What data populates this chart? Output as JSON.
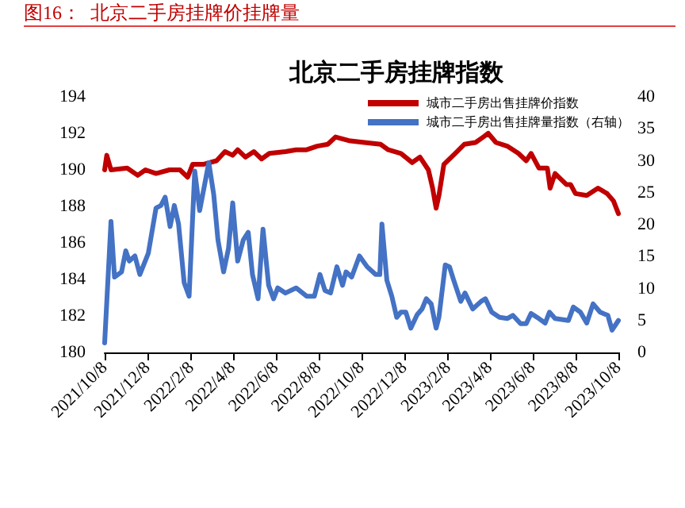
{
  "chart_data": {
    "type": "line",
    "title": "图16：  北京二手房挂牌价挂牌量",
    "subtitle": "北京二手房挂牌指数",
    "xlim": [
      "2021-10-08",
      "2023-10-08"
    ],
    "xticks": [
      {
        "value": "2021-10-08",
        "label": "2021/10/8"
      },
      {
        "value": "2021-12-08",
        "label": "2021/12/8"
      },
      {
        "value": "2022-02-08",
        "label": "2022/2/8"
      },
      {
        "value": "2022-04-08",
        "label": "2022/4/8"
      },
      {
        "value": "2022-06-08",
        "label": "2022/6/8"
      },
      {
        "value": "2022-08-08",
        "label": "2022/8/8"
      },
      {
        "value": "2022-10-08",
        "label": "2022/10/8"
      },
      {
        "value": "2022-12-08",
        "label": "2022/12/8"
      },
      {
        "value": "2023-02-08",
        "label": "2023/2/8"
      },
      {
        "value": "2023-04-08",
        "label": "2023/4/8"
      },
      {
        "value": "2023-06-08",
        "label": "2023/6/8"
      },
      {
        "value": "2023-08-08",
        "label": "2023/8/8"
      },
      {
        "value": "2023-10-08",
        "label": "2023/10/8"
      }
    ],
    "ylim": [
      180,
      194
    ],
    "yticks": [
      180,
      182,
      184,
      186,
      188,
      190,
      192,
      194
    ],
    "y2lim": [
      0,
      40
    ],
    "y2ticks": [
      0,
      5,
      10,
      15,
      20,
      25,
      30,
      35,
      40
    ],
    "legend": "top right",
    "grid": false,
    "series": [
      {
        "name": "城市二手房出售挂牌价指数",
        "color": "#c00000",
        "x": [
          "2021-10-08",
          "2021-10-11",
          "2021-10-17",
          "2021-11-09",
          "2021-11-24",
          "2021-12-05",
          "2021-12-20",
          "2022-01-08",
          "2022-01-23",
          "2022-02-03",
          "2022-02-10",
          "2022-02-25",
          "2022-03-16",
          "2022-03-28",
          "2022-04-08",
          "2022-04-15",
          "2022-04-26",
          "2022-05-08",
          "2022-05-19",
          "2022-05-30",
          "2022-06-22",
          "2022-07-07",
          "2022-07-22",
          "2022-08-06",
          "2022-08-21",
          "2022-09-01",
          "2022-09-20",
          "2022-10-12",
          "2022-11-04",
          "2022-11-15",
          "2022-12-03",
          "2022-12-19",
          "2022-12-30",
          "2023-01-11",
          "2023-01-17",
          "2023-01-22",
          "2023-01-26",
          "2023-02-02",
          "2023-02-18",
          "2023-03-03",
          "2023-03-19",
          "2023-03-30",
          "2023-04-06",
          "2023-04-17",
          "2023-05-03",
          "2023-05-19",
          "2023-05-30",
          "2023-06-06",
          "2023-06-17",
          "2023-06-29",
          "2023-07-03",
          "2023-07-10",
          "2023-07-26",
          "2023-08-01",
          "2023-08-08",
          "2023-08-24",
          "2023-09-09",
          "2023-09-22",
          "2023-10-01",
          "2023-10-08"
        ],
        "values": [
          190.0,
          190.8,
          190.0,
          190.1,
          189.7,
          190.0,
          189.8,
          190.0,
          190.0,
          189.6,
          190.3,
          190.3,
          190.5,
          191.0,
          190.8,
          191.1,
          190.7,
          191.0,
          190.6,
          190.9,
          191.0,
          191.1,
          191.1,
          191.3,
          191.4,
          191.8,
          191.6,
          191.5,
          191.4,
          191.1,
          190.9,
          190.4,
          190.7,
          190.0,
          189.0,
          187.9,
          188.6,
          190.3,
          190.9,
          191.4,
          191.5,
          191.8,
          192.0,
          191.5,
          191.3,
          190.9,
          190.5,
          190.9,
          190.1,
          190.1,
          189.0,
          189.8,
          189.2,
          189.2,
          188.7,
          188.6,
          189.0,
          188.7,
          188.3,
          187.6
        ]
      },
      {
        "name": "城市二手房出售挂牌量指数（右轴）",
        "color": "#4472c4",
        "axis": "y2",
        "x": [
          "2021-10-08",
          "2021-10-17",
          "2021-10-22",
          "2021-11-01",
          "2021-11-07",
          "2021-11-12",
          "2021-11-20",
          "2021-11-27",
          "2021-12-09",
          "2021-12-20",
          "2021-12-27",
          "2022-01-02",
          "2022-01-09",
          "2022-01-15",
          "2022-01-21",
          "2022-01-29",
          "2022-02-05",
          "2022-02-13",
          "2022-02-20",
          "2022-03-05",
          "2022-03-12",
          "2022-03-18",
          "2022-03-26",
          "2022-04-02",
          "2022-04-08",
          "2022-04-15",
          "2022-04-23",
          "2022-04-30",
          "2022-05-06",
          "2022-05-14",
          "2022-05-21",
          "2022-05-29",
          "2022-06-05",
          "2022-06-11",
          "2022-06-22",
          "2022-07-07",
          "2022-07-22",
          "2022-08-02",
          "2022-08-10",
          "2022-08-17",
          "2022-08-25",
          "2022-09-03",
          "2022-09-11",
          "2022-09-16",
          "2022-09-24",
          "2022-10-05",
          "2022-10-16",
          "2022-10-28",
          "2022-11-03",
          "2022-11-06",
          "2022-11-13",
          "2022-11-20",
          "2022-11-27",
          "2022-12-03",
          "2022-12-10",
          "2022-12-17",
          "2022-12-26",
          "2023-01-02",
          "2023-01-08",
          "2023-01-15",
          "2023-01-22",
          "2023-01-26",
          "2023-02-04",
          "2023-02-10",
          "2023-02-16",
          "2023-02-26",
          "2023-03-04",
          "2023-03-15",
          "2023-03-27",
          "2023-04-02",
          "2023-04-11",
          "2023-04-22",
          "2023-05-03",
          "2023-05-11",
          "2023-05-22",
          "2023-05-30",
          "2023-06-06",
          "2023-06-17",
          "2023-06-26",
          "2023-07-02",
          "2023-07-10",
          "2023-07-29",
          "2023-08-05",
          "2023-08-15",
          "2023-08-24",
          "2023-09-02",
          "2023-09-12",
          "2023-09-23",
          "2023-09-29",
          "2023-10-08"
        ],
        "values": [
          1.5,
          20.5,
          11.8,
          12.6,
          15.9,
          14.3,
          15.1,
          12.2,
          15.5,
          22.6,
          23,
          24.3,
          19.7,
          23,
          20.1,
          10.9,
          8.8,
          28.4,
          22.2,
          29.7,
          24.7,
          17.6,
          12.6,
          16.3,
          23.4,
          14.3,
          17.6,
          18.8,
          12.2,
          8.4,
          19.3,
          10.5,
          8.4,
          10.1,
          9.3,
          10.1,
          8.8,
          8.8,
          12.2,
          9.7,
          9.3,
          13.4,
          10.5,
          12.6,
          11.8,
          15.1,
          13.4,
          12.2,
          12.2,
          20.1,
          11.3,
          8.8,
          5.5,
          6.3,
          6.3,
          3.8,
          5.9,
          6.8,
          8.4,
          7.6,
          3.8,
          5.5,
          13.7,
          13.4,
          11.3,
          8,
          9.3,
          6.8,
          8,
          8.4,
          6.3,
          5.5,
          5.3,
          5.8,
          4.5,
          4.5,
          6.1,
          5.3,
          4.6,
          6.3,
          5.3,
          5,
          7.1,
          6.3,
          4.6,
          7.6,
          6.3,
          5.8,
          3.5,
          5
        ]
      }
    ]
  }
}
